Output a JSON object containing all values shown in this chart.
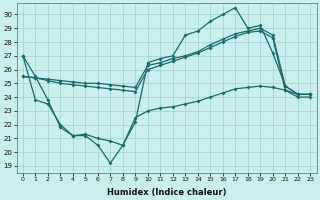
{
  "xlabel": "Humidex (Indice chaleur)",
  "bg_color": "#c8eeee",
  "grid_color": "#9fd0d0",
  "line_color": "#1a6b6b",
  "xlim": [
    -0.5,
    23.5
  ],
  "ylim": [
    18.5,
    30.8
  ],
  "yticks": [
    19,
    20,
    21,
    22,
    23,
    24,
    25,
    26,
    27,
    28,
    29,
    30
  ],
  "xticks": [
    0,
    1,
    2,
    3,
    4,
    5,
    6,
    7,
    8,
    9,
    10,
    11,
    12,
    13,
    14,
    15,
    16,
    17,
    18,
    19,
    20,
    21,
    22,
    23
  ],
  "series_jagged": [
    27,
    25.5,
    23.8,
    21.8,
    21.2,
    21.2,
    20.5,
    19.2,
    20.5,
    22.2,
    26.5,
    26.8,
    27.0,
    28.5,
    28.8,
    29.5,
    30.0,
    30.5,
    29.0,
    29.2,
    27.2,
    24.8,
    24.2,
    24.2
  ],
  "series_trend1": [
    25.5,
    25.4,
    25.3,
    25.2,
    25.1,
    25.0,
    25.0,
    24.9,
    24.8,
    24.7,
    26.3,
    26.5,
    26.8,
    27.0,
    27.3,
    27.8,
    28.2,
    28.6,
    28.8,
    29.0,
    28.5,
    24.8,
    24.2,
    24.2
  ],
  "series_trend2": [
    25.5,
    25.4,
    25.2,
    25.0,
    24.9,
    24.8,
    24.7,
    24.6,
    24.5,
    24.4,
    26.0,
    26.3,
    26.6,
    26.9,
    27.2,
    27.6,
    28.0,
    28.4,
    28.7,
    28.8,
    28.3,
    24.5,
    24.0,
    24.0
  ],
  "series_bottom": [
    27,
    23.8,
    23.5,
    22.0,
    21.2,
    21.3,
    21.0,
    20.8,
    20.5,
    22.5,
    23.0,
    23.2,
    23.3,
    23.5,
    23.7,
    24.0,
    24.3,
    24.6,
    24.7,
    24.8,
    24.7,
    24.5,
    24.2,
    24.2
  ]
}
